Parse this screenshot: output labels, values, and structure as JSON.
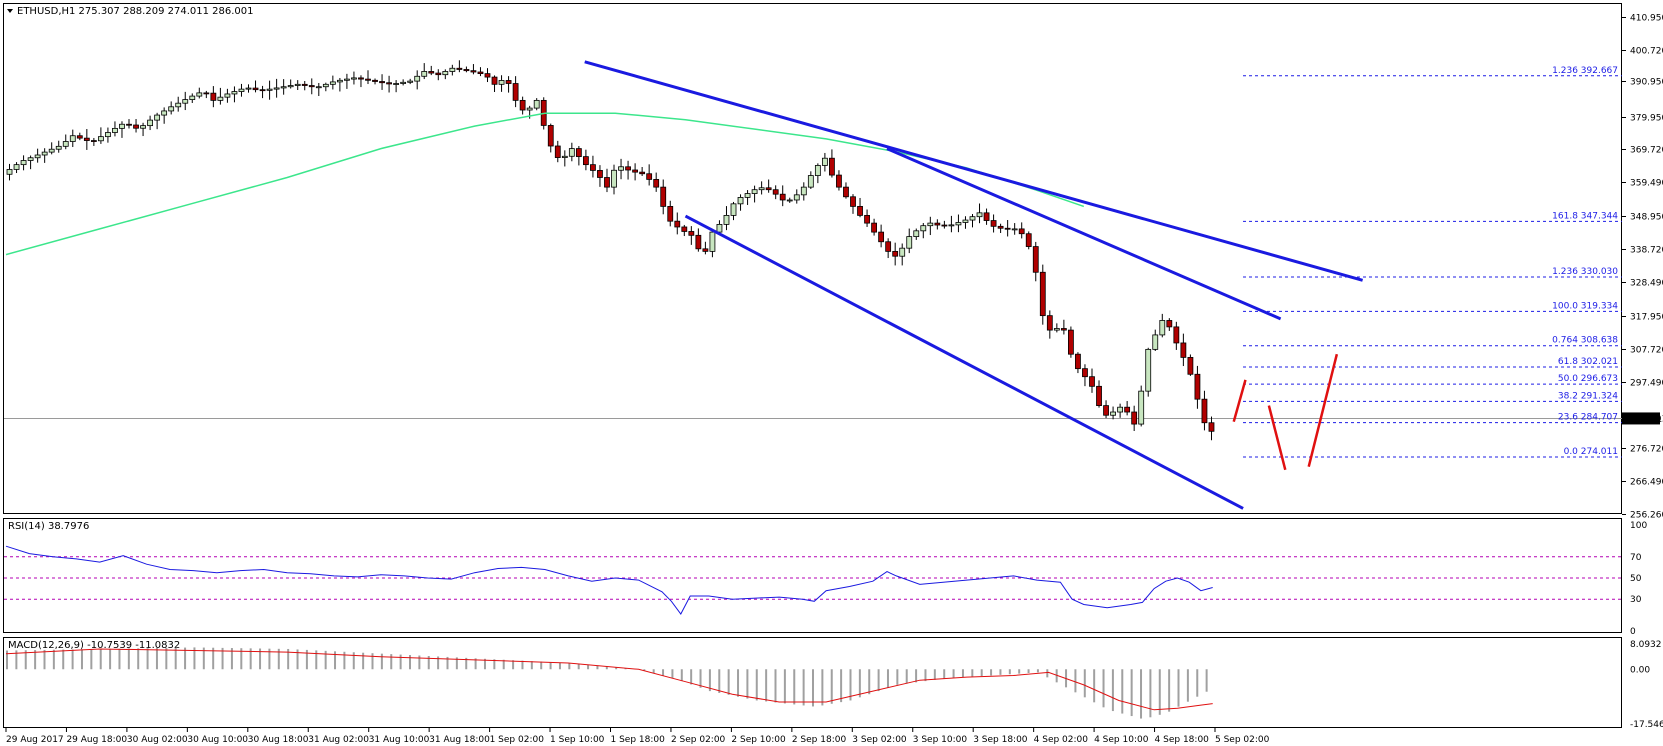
{
  "chart_data": {
    "type": "candlestick",
    "symbol_header": "ETHUSD,H1  275.307 288.209 274.011 286.001",
    "price_axis": {
      "range": [
        256.26,
        415.0
      ],
      "ticks": [
        "410.950",
        "400.720",
        "390.950",
        "379.950",
        "369.720",
        "359.490",
        "348.950",
        "338.720",
        "328.490",
        "317.950",
        "307.720",
        "297.490",
        "286.001",
        "276.720",
        "266.490",
        "256.260"
      ],
      "current_price": 286.001,
      "current_label": "286.001"
    },
    "time_axis": {
      "labels": [
        "29 Aug 2017",
        "29 Aug 18:00",
        "30 Aug 02:00",
        "30 Aug 10:00",
        "30 Aug 18:00",
        "31 Aug 02:00",
        "31 Aug 10:00",
        "31 Aug 18:00",
        "1 Sep 02:00",
        "1 Sep 10:00",
        "1 Sep 18:00",
        "2 Sep 02:00",
        "2 Sep 10:00",
        "2 Sep 18:00",
        "3 Sep 02:00",
        "3 Sep 10:00",
        "3 Sep 18:00",
        "4 Sep 02:00",
        "4 Sep 10:00",
        "4 Sep 18:00",
        "5 Sep 02:00"
      ]
    },
    "price_path": [
      [
        0,
        362
      ],
      [
        8,
        366
      ],
      [
        15,
        368
      ],
      [
        25,
        371
      ],
      [
        30,
        374
      ],
      [
        38,
        372
      ],
      [
        45,
        375
      ],
      [
        52,
        378
      ],
      [
        58,
        376
      ],
      [
        65,
        380
      ],
      [
        72,
        383
      ],
      [
        80,
        386
      ],
      [
        86,
        388
      ],
      [
        90,
        385
      ],
      [
        96,
        387
      ],
      [
        104,
        389
      ],
      [
        110,
        388
      ],
      [
        118,
        389
      ],
      [
        126,
        390
      ],
      [
        134,
        389
      ],
      [
        142,
        391
      ],
      [
        150,
        392
      ],
      [
        158,
        391
      ],
      [
        166,
        390
      ],
      [
        174,
        391
      ],
      [
        180,
        394
      ],
      [
        186,
        393
      ],
      [
        192,
        395
      ],
      [
        200,
        394
      ],
      [
        206,
        393
      ],
      [
        210,
        390
      ],
      [
        215,
        392
      ],
      [
        219,
        385
      ],
      [
        223,
        381
      ],
      [
        228,
        385
      ],
      [
        233,
        372
      ],
      [
        238,
        366
      ],
      [
        243,
        370
      ],
      [
        249,
        365
      ],
      [
        254,
        362
      ],
      [
        258,
        358
      ],
      [
        262,
        365
      ],
      [
        268,
        363
      ],
      [
        274,
        362
      ],
      [
        279,
        358
      ],
      [
        284,
        348
      ],
      [
        289,
        345
      ],
      [
        294,
        343
      ],
      [
        299,
        336
      ],
      [
        303,
        344
      ],
      [
        308,
        348
      ],
      [
        313,
        354
      ],
      [
        318,
        356
      ],
      [
        323,
        358
      ],
      [
        328,
        357
      ],
      [
        333,
        354
      ],
      [
        337,
        354
      ],
      [
        342,
        358
      ],
      [
        347,
        364
      ],
      [
        351,
        367
      ],
      [
        355,
        360
      ],
      [
        360,
        355
      ],
      [
        365,
        350
      ],
      [
        370,
        346
      ],
      [
        374,
        342
      ],
      [
        378,
        338
      ],
      [
        382,
        336
      ],
      [
        386,
        342
      ],
      [
        391,
        345
      ],
      [
        395,
        347
      ],
      [
        400,
        346
      ],
      [
        404,
        346
      ],
      [
        408,
        347
      ],
      [
        412,
        348
      ],
      [
        417,
        350
      ],
      [
        422,
        346
      ],
      [
        427,
        345
      ],
      [
        432,
        345
      ],
      [
        436,
        343
      ],
      [
        440,
        336
      ],
      [
        444,
        318
      ],
      [
        448,
        312
      ],
      [
        452,
        316
      ],
      [
        456,
        306
      ],
      [
        460,
        300
      ],
      [
        464,
        298
      ],
      [
        468,
        290
      ],
      [
        472,
        286
      ],
      [
        476,
        290
      ],
      [
        480,
        288
      ],
      [
        484,
        283
      ],
      [
        488,
        306
      ],
      [
        492,
        312
      ],
      [
        496,
        318
      ],
      [
        500,
        311
      ],
      [
        504,
        305
      ],
      [
        508,
        298
      ],
      [
        512,
        286
      ],
      [
        515,
        282
      ],
      [
        518,
        286
      ]
    ],
    "moving_average": [
      [
        0,
        337
      ],
      [
        40,
        345
      ],
      [
        80,
        353
      ],
      [
        120,
        361
      ],
      [
        160,
        370
      ],
      [
        200,
        377
      ],
      [
        230,
        381
      ],
      [
        260,
        381
      ],
      [
        290,
        379
      ],
      [
        320,
        376
      ],
      [
        350,
        373
      ],
      [
        380,
        369
      ],
      [
        410,
        364
      ],
      [
        440,
        357
      ],
      [
        460,
        352
      ]
    ],
    "fibonacci_levels": [
      {
        "label": "1.236  392.667",
        "price": 392.667
      },
      {
        "label": "161.8  347.344",
        "price": 347.344
      },
      {
        "label": "1.236  330.030",
        "price": 330.03
      },
      {
        "label": "100.0  319.334",
        "price": 319.334
      },
      {
        "label": "0.764  308.638",
        "price": 308.638
      },
      {
        "label": "61.8  302.021",
        "price": 302.021
      },
      {
        "label": "50.0  296.673",
        "price": 296.673
      },
      {
        "label": "38.2  291.324",
        "price": 291.324
      },
      {
        "label": "23.6  284.707",
        "price": 284.707
      },
      {
        "label": "0.0  274.011",
        "price": 274.011
      }
    ],
    "trendlines": [
      {
        "name": "upper-trendline",
        "from": [
          247,
          397
        ],
        "to": [
          579,
          329
        ]
      },
      {
        "name": "middle-trendline",
        "from": [
          376,
          370
        ],
        "to": [
          544,
          317
        ]
      },
      {
        "name": "channel-support",
        "from": [
          290,
          349
        ],
        "to": [
          528,
          258
        ]
      }
    ],
    "projection_arrows": [
      {
        "name": "projection-up-1",
        "from": [
          524,
          285
        ],
        "to": [
          529,
          298
        ]
      },
      {
        "name": "projection-down",
        "from": [
          539,
          290
        ],
        "to": [
          546,
          270
        ]
      },
      {
        "name": "projection-up-2",
        "from": [
          556,
          271
        ],
        "to": [
          568,
          306
        ]
      }
    ],
    "rsi": {
      "header": "RSI(14) 38.7976",
      "range": [
        0,
        100
      ],
      "ticks": [
        "100",
        "70",
        "50",
        "30",
        "0"
      ],
      "levels": [
        70,
        50,
        30
      ],
      "values": [
        [
          0,
          80
        ],
        [
          10,
          73
        ],
        [
          20,
          70
        ],
        [
          30,
          68
        ],
        [
          40,
          65
        ],
        [
          50,
          71
        ],
        [
          60,
          63
        ],
        [
          70,
          58
        ],
        [
          80,
          57
        ],
        [
          90,
          55
        ],
        [
          100,
          57
        ],
        [
          110,
          58
        ],
        [
          120,
          55
        ],
        [
          130,
          54
        ],
        [
          140,
          52
        ],
        [
          150,
          51
        ],
        [
          160,
          53
        ],
        [
          170,
          52
        ],
        [
          180,
          50
        ],
        [
          190,
          49
        ],
        [
          200,
          55
        ],
        [
          210,
          59
        ],
        [
          220,
          60
        ],
        [
          230,
          58
        ],
        [
          240,
          52
        ],
        [
          250,
          47
        ],
        [
          260,
          50
        ],
        [
          270,
          48
        ],
        [
          280,
          37
        ],
        [
          284,
          28
        ],
        [
          288,
          16
        ],
        [
          292,
          33
        ],
        [
          300,
          33
        ],
        [
          310,
          30
        ],
        [
          320,
          31
        ],
        [
          330,
          32
        ],
        [
          340,
          30
        ],
        [
          345,
          28
        ],
        [
          350,
          38
        ],
        [
          360,
          42
        ],
        [
          370,
          47
        ],
        [
          376,
          56
        ],
        [
          380,
          52
        ],
        [
          390,
          44
        ],
        [
          400,
          46
        ],
        [
          410,
          48
        ],
        [
          420,
          50
        ],
        [
          430,
          52
        ],
        [
          440,
          48
        ],
        [
          450,
          46
        ],
        [
          455,
          30
        ],
        [
          460,
          25
        ],
        [
          470,
          22
        ],
        [
          480,
          25
        ],
        [
          485,
          27
        ],
        [
          490,
          40
        ],
        [
          495,
          47
        ],
        [
          500,
          50
        ],
        [
          505,
          46
        ],
        [
          510,
          38
        ],
        [
          515,
          41
        ]
      ]
    },
    "macd": {
      "header": "MACD(12,26,9) -10.7539 -11.0832",
      "range": [
        -17.5466,
        8.0932
      ],
      "ticks": [
        "8.0932",
        "0.00",
        "-17.5466"
      ],
      "histogram": [
        [
          0,
          6
        ],
        [
          40,
          6.5
        ],
        [
          80,
          7
        ],
        [
          120,
          6.5
        ],
        [
          160,
          5
        ],
        [
          200,
          3.5
        ],
        [
          240,
          2
        ],
        [
          270,
          0
        ],
        [
          285,
          -3
        ],
        [
          300,
          -7
        ],
        [
          320,
          -10
        ],
        [
          345,
          -12
        ],
        [
          360,
          -10
        ],
        [
          380,
          -5
        ],
        [
          400,
          -3
        ],
        [
          420,
          -2
        ],
        [
          440,
          -1
        ],
        [
          455,
          -7
        ],
        [
          470,
          -13
        ],
        [
          485,
          -16
        ],
        [
          495,
          -14
        ],
        [
          505,
          -10
        ],
        [
          515,
          -6
        ]
      ],
      "signal": [
        [
          0,
          5
        ],
        [
          40,
          6.5
        ],
        [
          80,
          6
        ],
        [
          120,
          5.5
        ],
        [
          160,
          4
        ],
        [
          200,
          3
        ],
        [
          240,
          2
        ],
        [
          270,
          0
        ],
        [
          290,
          -4
        ],
        [
          310,
          -8
        ],
        [
          330,
          -10.5
        ],
        [
          350,
          -10.5
        ],
        [
          370,
          -7
        ],
        [
          390,
          -3.5
        ],
        [
          410,
          -2.5
        ],
        [
          430,
          -2
        ],
        [
          445,
          -1
        ],
        [
          460,
          -5
        ],
        [
          475,
          -10
        ],
        [
          490,
          -13
        ],
        [
          500,
          -12.5
        ],
        [
          510,
          -11.5
        ],
        [
          515,
          -11
        ]
      ]
    }
  }
}
